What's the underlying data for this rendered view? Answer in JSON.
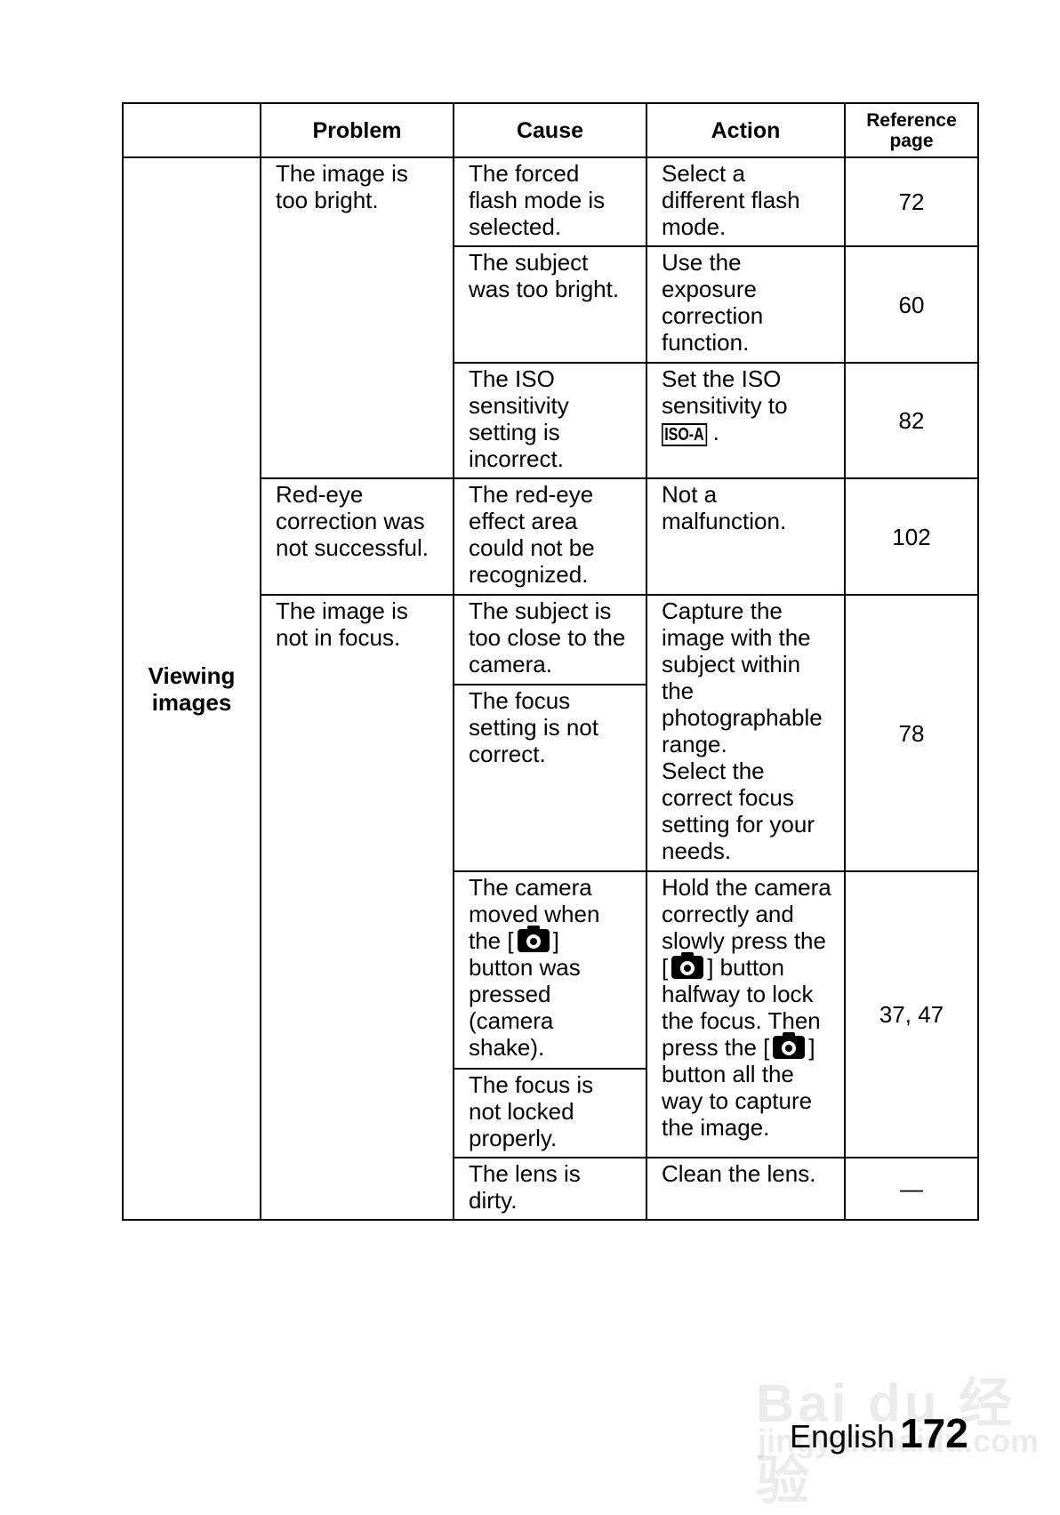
{
  "header": {
    "col0": "",
    "problem": "Problem",
    "cause": "Cause",
    "action": "Action",
    "reference": "Reference\npage"
  },
  "category": "Viewing\nimages",
  "problems": [
    "The image is\ntoo bright.",
    "Red-eye\ncorrection was\nnot successful.",
    "The image is\nnot in focus."
  ],
  "causes": [
    "The forced\nflash mode is\nselected.",
    "The subject\nwas too bright.",
    "The ISO\nsensitivity\nsetting is\nincorrect.",
    "The red-eye\neffect area\ncould not be\nrecognized.",
    "The subject is\ntoo close to the\ncamera.",
    "The focus\nsetting is not\ncorrect.",
    {
      "before": "The camera\nmoved when\nthe [",
      "after": "]\nbutton was\npressed\n(camera\nshake)."
    },
    "The focus is\nnot locked\nproperly.",
    "The lens is\ndirty."
  ],
  "actions": [
    "Select a\ndifferent flash\nmode.",
    "Use the\nexposure\ncorrection\nfunction.",
    {
      "text": "Set the ISO\nsensitivity to\n",
      "icon_label": "ISO-A",
      "after": "."
    },
    "Not a\nmalfunction.",
    "Capture the\nimage with the\nsubject within\nthe\nphotographable\nrange.\nSelect the\ncorrect focus\nsetting for your\nneeds.",
    {
      "p1": "Hold the camera\ncorrectly and\nslowly press the\n[",
      "p2": "] button\nhalfway to lock\nthe focus. Then\npress the [",
      "p3": "]\nbutton all the\nway to capture\nthe image."
    },
    "Clean the lens."
  ],
  "references": [
    "72",
    "60",
    "82",
    "102",
    "78",
    "37, 47",
    "—"
  ],
  "icons": {
    "shutter": "camera-icon"
  },
  "footer": {
    "language": "English",
    "page_number": "172"
  },
  "watermark": {
    "logo": "Bai du 经验",
    "url": "jingyan.baidu.com"
  }
}
